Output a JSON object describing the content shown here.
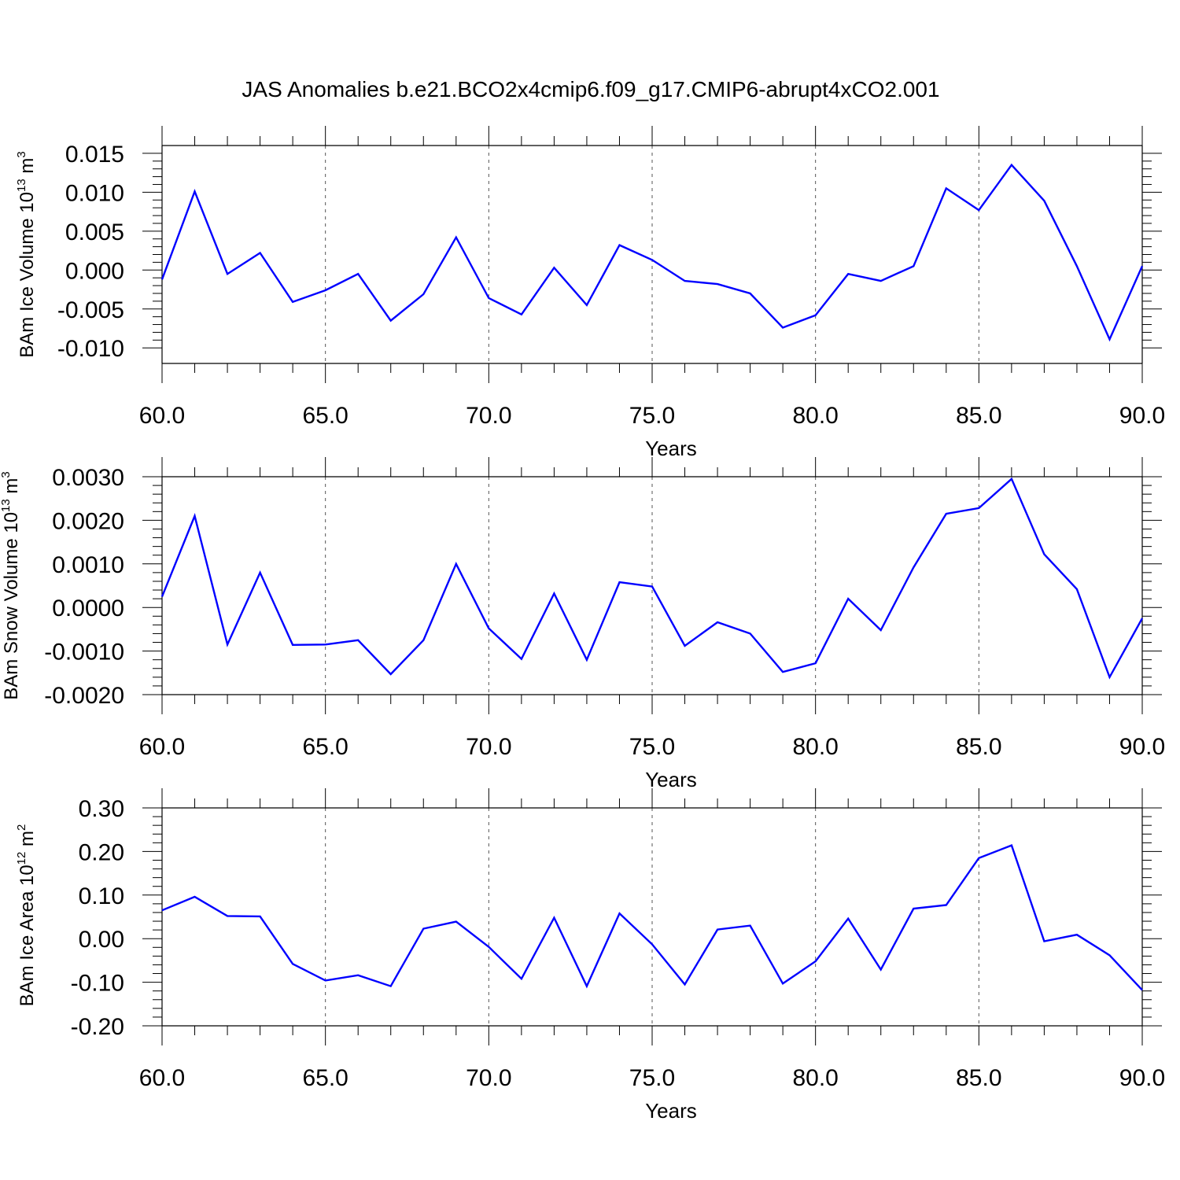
{
  "title": "JAS Anomalies b.e21.BCO2x4cmip6.f09_g17.CMIP6-abrupt4xCO2.001",
  "colors": {
    "line": "#0000ff",
    "axis": "#000000",
    "grid": "#555555"
  },
  "chart_data": [
    {
      "type": "line",
      "xlabel": "Years",
      "ylabel_pre": "BAm Ice Volume 10",
      "ylabel_exp": "13",
      "ylabel_post": "m",
      "ylabel_unit_exp": "3",
      "xlim": [
        60,
        90
      ],
      "ylim": [
        -0.012,
        0.016
      ],
      "xticks": [
        60,
        65,
        70,
        75,
        80,
        85,
        90
      ],
      "xtick_labels": [
        "60.0",
        "65.0",
        "70.0",
        "75.0",
        "80.0",
        "85.0",
        "90.0"
      ],
      "yticks": [
        -0.01,
        -0.005,
        0.0,
        0.005,
        0.01,
        0.015
      ],
      "ytick_labels": [
        "-0.010",
        "-0.005",
        "0.000",
        "0.005",
        "0.010",
        "0.015"
      ],
      "grid": "vertical dashed at major x ticks",
      "x": [
        60,
        61,
        62,
        63,
        64,
        65,
        66,
        67,
        68,
        69,
        70,
        71,
        72,
        73,
        74,
        75,
        76,
        77,
        78,
        79,
        80,
        81,
        82,
        83,
        84,
        85,
        86,
        87,
        88,
        89,
        90
      ],
      "series": [
        {
          "values": [
            -0.0012,
            0.0101,
            -0.0005,
            0.0022,
            -0.0041,
            -0.0026,
            -0.0005,
            -0.0065,
            -0.0031,
            0.0042,
            -0.0036,
            -0.0057,
            0.0003,
            -0.0045,
            0.0032,
            0.0013,
            -0.0014,
            -0.0018,
            -0.003,
            -0.0074,
            -0.0058,
            -0.0005,
            -0.0014,
            0.0005,
            0.0105,
            0.0077,
            0.0135,
            0.0089,
            0.0005,
            -0.0089,
            0.0005
          ]
        }
      ]
    },
    {
      "type": "line",
      "xlabel": "Years",
      "ylabel_pre": "BAm Snow Volume 10",
      "ylabel_exp": "13",
      "ylabel_post": "m",
      "ylabel_unit_exp": "3",
      "xlim": [
        60,
        90
      ],
      "ylim": [
        -0.002,
        0.003
      ],
      "xticks": [
        60,
        65,
        70,
        75,
        80,
        85,
        90
      ],
      "xtick_labels": [
        "60.0",
        "65.0",
        "70.0",
        "75.0",
        "80.0",
        "85.0",
        "90.0"
      ],
      "yticks": [
        -0.002,
        -0.001,
        0.0,
        0.001,
        0.002,
        0.003
      ],
      "ytick_labels": [
        "-0.0020",
        "-0.0010",
        "0.0000",
        "0.0010",
        "0.0020",
        "0.0030"
      ],
      "grid": "vertical dashed at major x ticks",
      "x": [
        60,
        61,
        62,
        63,
        64,
        65,
        66,
        67,
        68,
        69,
        70,
        71,
        72,
        73,
        74,
        75,
        76,
        77,
        78,
        79,
        80,
        81,
        82,
        83,
        84,
        85,
        86,
        87,
        88,
        89,
        90
      ],
      "series": [
        {
          "values": [
            0.00025,
            0.0021,
            -0.00085,
            0.0008,
            -0.00086,
            -0.00085,
            -0.00075,
            -0.00153,
            -0.00075,
            0.001,
            -0.00048,
            -0.00118,
            0.00032,
            -0.0012,
            0.00058,
            0.00048,
            -0.00088,
            -0.00034,
            -0.0006,
            -0.00148,
            -0.00128,
            0.0002,
            -0.00052,
            0.00092,
            0.00215,
            0.00228,
            0.00295,
            0.00122,
            0.00042,
            -0.0016,
            -0.00025
          ]
        }
      ]
    },
    {
      "type": "line",
      "xlabel": "Years",
      "ylabel_pre": "BAm Ice Area 10",
      "ylabel_exp": "12",
      "ylabel_post": "m",
      "ylabel_unit_exp": "2",
      "xlim": [
        60,
        90
      ],
      "ylim": [
        -0.2,
        0.3
      ],
      "xticks": [
        60,
        65,
        70,
        75,
        80,
        85,
        90
      ],
      "xtick_labels": [
        "60.0",
        "65.0",
        "70.0",
        "75.0",
        "80.0",
        "85.0",
        "90.0"
      ],
      "yticks": [
        -0.2,
        -0.1,
        0.0,
        0.1,
        0.2,
        0.3
      ],
      "ytick_labels": [
        "-0.20",
        "-0.10",
        "0.00",
        "0.10",
        "0.20",
        "0.30"
      ],
      "grid": "vertical dashed at major x ticks",
      "x": [
        60,
        61,
        62,
        63,
        64,
        65,
        66,
        67,
        68,
        69,
        70,
        71,
        72,
        73,
        74,
        75,
        76,
        77,
        78,
        79,
        80,
        81,
        82,
        83,
        84,
        85,
        86,
        87,
        88,
        89,
        90
      ],
      "series": [
        {
          "values": [
            0.065,
            0.096,
            0.052,
            0.051,
            -0.058,
            -0.096,
            -0.084,
            -0.109,
            0.023,
            0.039,
            -0.019,
            -0.092,
            0.048,
            -0.109,
            0.058,
            -0.013,
            -0.105,
            0.021,
            0.03,
            -0.103,
            -0.052,
            0.046,
            -0.071,
            0.069,
            0.077,
            0.185,
            0.214,
            -0.006,
            0.009,
            -0.038,
            -0.118
          ]
        }
      ]
    }
  ]
}
